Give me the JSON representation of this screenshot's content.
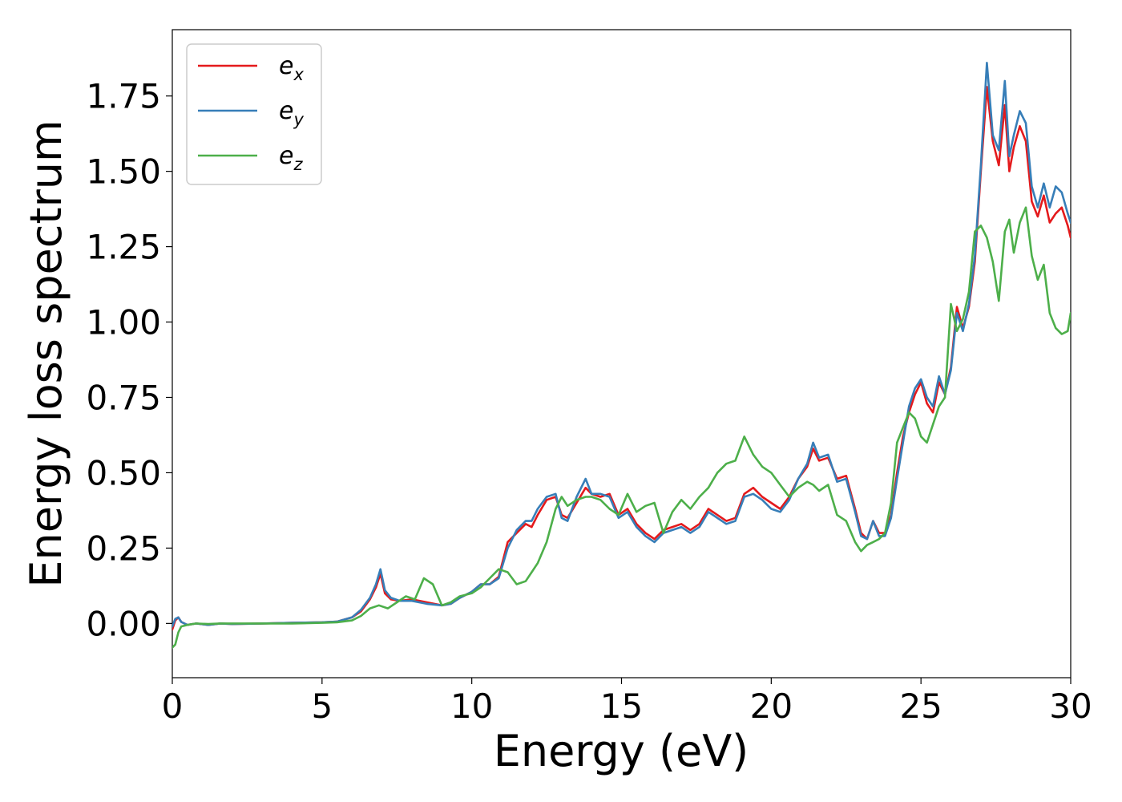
{
  "chart_data": {
    "type": "line",
    "title": "",
    "xlabel": "Energy (eV)",
    "ylabel": "Energy loss spectrum",
    "xlim": [
      0,
      30
    ],
    "ylim": [
      -0.18,
      1.97
    ],
    "xticks": [
      "0",
      "5",
      "10",
      "15",
      "20",
      "25",
      "30"
    ],
    "xtick_values": [
      0,
      5,
      10,
      15,
      20,
      25,
      30
    ],
    "yticks": [
      "0.00",
      "0.25",
      "0.50",
      "0.75",
      "1.00",
      "1.25",
      "1.50",
      "1.75"
    ],
    "ytick_values": [
      0,
      0.25,
      0.5,
      0.75,
      1.0,
      1.25,
      1.5,
      1.75
    ],
    "grid": false,
    "legend_position": "upper-left",
    "series": [
      {
        "name": "e_x",
        "legend_base": "e",
        "legend_sub": "x",
        "color": "#e41a1c",
        "x": [
          0,
          0.1,
          0.2,
          0.3,
          0.5,
          0.8,
          1.2,
          1.6,
          2,
          3,
          4,
          5,
          5.5,
          6,
          6.3,
          6.6,
          6.8,
          6.95,
          7.1,
          7.3,
          7.6,
          8,
          8.5,
          9,
          9.3,
          9.6,
          10,
          10.3,
          10.6,
          10.9,
          11.2,
          11.5,
          11.8,
          12,
          12.2,
          12.5,
          12.8,
          13,
          13.2,
          13.5,
          13.8,
          14,
          14.3,
          14.6,
          14.9,
          15.2,
          15.5,
          15.8,
          16.1,
          16.4,
          16.7,
          17,
          17.3,
          17.6,
          17.9,
          18.2,
          18.5,
          18.8,
          19.1,
          19.4,
          19.7,
          20,
          20.3,
          20.6,
          20.9,
          21.2,
          21.4,
          21.6,
          21.9,
          22.2,
          22.5,
          22.8,
          23,
          23.2,
          23.4,
          23.6,
          23.8,
          24,
          24.2,
          24.4,
          24.6,
          24.8,
          25,
          25.2,
          25.4,
          25.6,
          25.8,
          26,
          26.2,
          26.4,
          26.6,
          26.8,
          27,
          27.2,
          27.4,
          27.6,
          27.8,
          27.95,
          28.1,
          28.3,
          28.5,
          28.7,
          28.9,
          29.1,
          29.3,
          29.5,
          29.7,
          29.9,
          30
        ],
        "y": [
          -0.02,
          0.01,
          0.02,
          0.005,
          -0.005,
          0.0,
          -0.005,
          0.0,
          -0.002,
          0.0,
          0.002,
          0.004,
          0.006,
          0.02,
          0.04,
          0.08,
          0.12,
          0.165,
          0.1,
          0.08,
          0.075,
          0.08,
          0.07,
          0.06,
          0.065,
          0.085,
          0.105,
          0.13,
          0.13,
          0.155,
          0.27,
          0.3,
          0.33,
          0.32,
          0.36,
          0.41,
          0.42,
          0.36,
          0.35,
          0.4,
          0.45,
          0.43,
          0.42,
          0.43,
          0.36,
          0.38,
          0.33,
          0.3,
          0.28,
          0.31,
          0.32,
          0.33,
          0.31,
          0.33,
          0.38,
          0.36,
          0.34,
          0.35,
          0.43,
          0.45,
          0.42,
          0.4,
          0.38,
          0.42,
          0.48,
          0.52,
          0.58,
          0.54,
          0.55,
          0.48,
          0.49,
          0.38,
          0.3,
          0.28,
          0.34,
          0.3,
          0.3,
          0.36,
          0.5,
          0.62,
          0.7,
          0.76,
          0.8,
          0.73,
          0.7,
          0.8,
          0.76,
          0.85,
          1.05,
          0.98,
          1.05,
          1.2,
          1.5,
          1.78,
          1.6,
          1.52,
          1.72,
          1.5,
          1.58,
          1.65,
          1.6,
          1.4,
          1.35,
          1.42,
          1.33,
          1.36,
          1.38,
          1.32,
          1.28
        ]
      },
      {
        "name": "e_y",
        "legend_base": "e",
        "legend_sub": "y",
        "color": "#377eb8",
        "x": [
          0,
          0.1,
          0.2,
          0.3,
          0.5,
          0.8,
          1.2,
          1.6,
          2,
          3,
          4,
          5,
          5.5,
          6,
          6.3,
          6.6,
          6.8,
          6.95,
          7.1,
          7.3,
          7.6,
          8,
          8.5,
          9,
          9.3,
          9.6,
          10,
          10.3,
          10.6,
          10.9,
          11.2,
          11.5,
          11.8,
          12,
          12.2,
          12.5,
          12.8,
          13,
          13.2,
          13.5,
          13.8,
          14,
          14.3,
          14.6,
          14.9,
          15.2,
          15.5,
          15.8,
          16.1,
          16.4,
          16.7,
          17,
          17.3,
          17.6,
          17.9,
          18.2,
          18.5,
          18.8,
          19.1,
          19.4,
          19.7,
          20,
          20.3,
          20.6,
          20.9,
          21.2,
          21.4,
          21.6,
          21.9,
          22.2,
          22.5,
          22.8,
          23,
          23.2,
          23.4,
          23.6,
          23.8,
          24,
          24.2,
          24.4,
          24.6,
          24.8,
          25,
          25.2,
          25.4,
          25.6,
          25.8,
          26,
          26.2,
          26.4,
          26.6,
          26.8,
          27,
          27.2,
          27.4,
          27.6,
          27.8,
          27.95,
          28.1,
          28.3,
          28.5,
          28.7,
          28.9,
          29.1,
          29.3,
          29.5,
          29.7,
          29.9,
          30
        ],
        "y": [
          -0.01,
          0.015,
          0.02,
          0.005,
          -0.005,
          0.0,
          -0.005,
          0.0,
          -0.002,
          0.0,
          0.002,
          0.004,
          0.006,
          0.02,
          0.045,
          0.085,
          0.13,
          0.18,
          0.11,
          0.085,
          0.075,
          0.075,
          0.065,
          0.06,
          0.065,
          0.085,
          0.105,
          0.13,
          0.13,
          0.15,
          0.25,
          0.31,
          0.34,
          0.34,
          0.38,
          0.42,
          0.43,
          0.35,
          0.34,
          0.42,
          0.48,
          0.43,
          0.43,
          0.42,
          0.35,
          0.37,
          0.32,
          0.29,
          0.27,
          0.3,
          0.31,
          0.32,
          0.3,
          0.32,
          0.37,
          0.35,
          0.33,
          0.34,
          0.42,
          0.43,
          0.41,
          0.38,
          0.37,
          0.41,
          0.48,
          0.53,
          0.6,
          0.55,
          0.56,
          0.47,
          0.48,
          0.37,
          0.29,
          0.28,
          0.34,
          0.29,
          0.29,
          0.35,
          0.48,
          0.6,
          0.72,
          0.78,
          0.81,
          0.75,
          0.72,
          0.82,
          0.76,
          0.84,
          1.03,
          0.97,
          1.06,
          1.22,
          1.52,
          1.86,
          1.62,
          1.57,
          1.8,
          1.55,
          1.62,
          1.7,
          1.66,
          1.45,
          1.38,
          1.46,
          1.38,
          1.45,
          1.43,
          1.36,
          1.33
        ]
      },
      {
        "name": "e_z",
        "legend_base": "e",
        "legend_sub": "z",
        "color": "#4daf4a",
        "x": [
          0,
          0.1,
          0.2,
          0.3,
          0.5,
          0.8,
          1.2,
          1.6,
          2,
          3,
          4,
          5,
          5.5,
          6,
          6.3,
          6.6,
          6.9,
          7.2,
          7.5,
          7.8,
          8.1,
          8.4,
          8.7,
          9,
          9.3,
          9.6,
          10,
          10.3,
          10.6,
          10.9,
          11.2,
          11.5,
          11.8,
          12,
          12.2,
          12.5,
          12.8,
          13,
          13.2,
          13.5,
          13.8,
          14,
          14.3,
          14.6,
          14.9,
          15.2,
          15.5,
          15.8,
          16.1,
          16.4,
          16.7,
          17,
          17.3,
          17.6,
          17.9,
          18.2,
          18.5,
          18.8,
          19.1,
          19.4,
          19.7,
          20,
          20.3,
          20.6,
          20.9,
          21.2,
          21.4,
          21.6,
          21.9,
          22.2,
          22.5,
          22.8,
          23,
          23.2,
          23.4,
          23.6,
          23.8,
          24,
          24.2,
          24.4,
          24.6,
          24.8,
          25,
          25.2,
          25.4,
          25.6,
          25.8,
          26,
          26.2,
          26.4,
          26.6,
          26.8,
          27,
          27.2,
          27.4,
          27.6,
          27.8,
          27.95,
          28.1,
          28.3,
          28.5,
          28.7,
          28.9,
          29.1,
          29.3,
          29.5,
          29.7,
          29.9,
          30
        ],
        "y": [
          -0.08,
          -0.07,
          -0.03,
          -0.01,
          -0.005,
          0.0,
          -0.002,
          0.0,
          0.0,
          0.0,
          0.0,
          0.002,
          0.004,
          0.01,
          0.025,
          0.05,
          0.06,
          0.05,
          0.07,
          0.09,
          0.08,
          0.15,
          0.13,
          0.06,
          0.07,
          0.09,
          0.1,
          0.12,
          0.15,
          0.18,
          0.17,
          0.13,
          0.14,
          0.17,
          0.2,
          0.27,
          0.38,
          0.42,
          0.39,
          0.41,
          0.42,
          0.42,
          0.41,
          0.38,
          0.36,
          0.43,
          0.37,
          0.39,
          0.4,
          0.3,
          0.37,
          0.41,
          0.38,
          0.42,
          0.45,
          0.5,
          0.53,
          0.54,
          0.62,
          0.56,
          0.52,
          0.5,
          0.46,
          0.42,
          0.45,
          0.47,
          0.46,
          0.44,
          0.46,
          0.36,
          0.34,
          0.27,
          0.24,
          0.26,
          0.27,
          0.28,
          0.3,
          0.4,
          0.6,
          0.65,
          0.7,
          0.68,
          0.62,
          0.6,
          0.66,
          0.72,
          0.75,
          1.06,
          0.97,
          1.01,
          1.1,
          1.3,
          1.32,
          1.28,
          1.2,
          1.07,
          1.3,
          1.34,
          1.23,
          1.33,
          1.38,
          1.22,
          1.14,
          1.19,
          1.03,
          0.98,
          0.96,
          0.97,
          1.03
        ]
      }
    ]
  }
}
